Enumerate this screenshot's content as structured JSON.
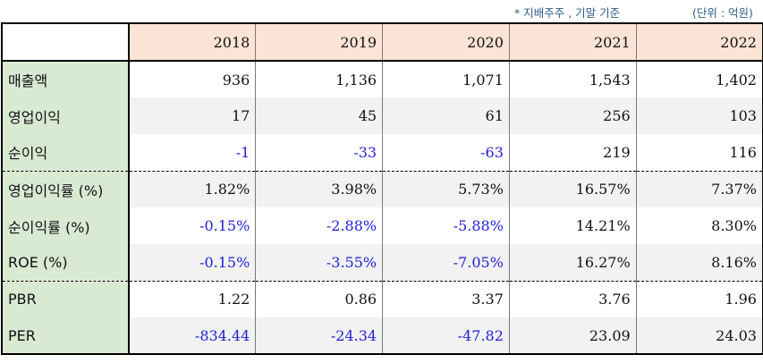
{
  "notes": {
    "basis": "* 지배주주 , 기말 기준",
    "unit": "(단위 : 억원)"
  },
  "header": {
    "corner": "",
    "years": [
      "2018",
      "2019",
      "2020",
      "2021",
      "2022"
    ]
  },
  "rows": [
    {
      "label": "매출액",
      "values": [
        "936",
        "1,136",
        "1,071",
        "1,543",
        "1,402"
      ],
      "negative": [
        false,
        false,
        false,
        false,
        false
      ]
    },
    {
      "label": "영업이익",
      "values": [
        "17",
        "45",
        "61",
        "256",
        "103"
      ],
      "negative": [
        false,
        false,
        false,
        false,
        false
      ]
    },
    {
      "label": "순이익",
      "values": [
        "-1",
        "-33",
        "-63",
        "219",
        "116"
      ],
      "negative": [
        true,
        true,
        true,
        false,
        false
      ]
    },
    {
      "label": "영업이익률 (%)",
      "values": [
        "1.82%",
        "3.98%",
        "5.73%",
        "16.57%",
        "7.37%"
      ],
      "negative": [
        false,
        false,
        false,
        false,
        false
      ]
    },
    {
      "label": "순이익률 (%)",
      "values": [
        "-0.15%",
        "-2.88%",
        "-5.88%",
        "14.21%",
        "8.30%"
      ],
      "negative": [
        true,
        true,
        true,
        false,
        false
      ]
    },
    {
      "label": "ROE (%)",
      "values": [
        "-0.15%",
        "-3.55%",
        "-7.05%",
        "16.27%",
        "8.16%"
      ],
      "negative": [
        true,
        true,
        true,
        false,
        false
      ]
    },
    {
      "label": "PBR",
      "values": [
        "1.22",
        "0.86",
        "3.37",
        "3.76",
        "1.96"
      ],
      "negative": [
        false,
        false,
        false,
        false,
        false
      ]
    },
    {
      "label": "PER",
      "values": [
        "-834.44",
        "-24.34",
        "-47.82",
        "23.09",
        "24.03"
      ],
      "negative": [
        true,
        true,
        true,
        false,
        false
      ]
    }
  ],
  "colors": {
    "header_bg": "#fbe4d5",
    "label_bg": "#d9ead3",
    "stripe_bg": "#f2f2f2",
    "negative_text": "#1f1fd6",
    "note_text": "#2f5f8a"
  }
}
